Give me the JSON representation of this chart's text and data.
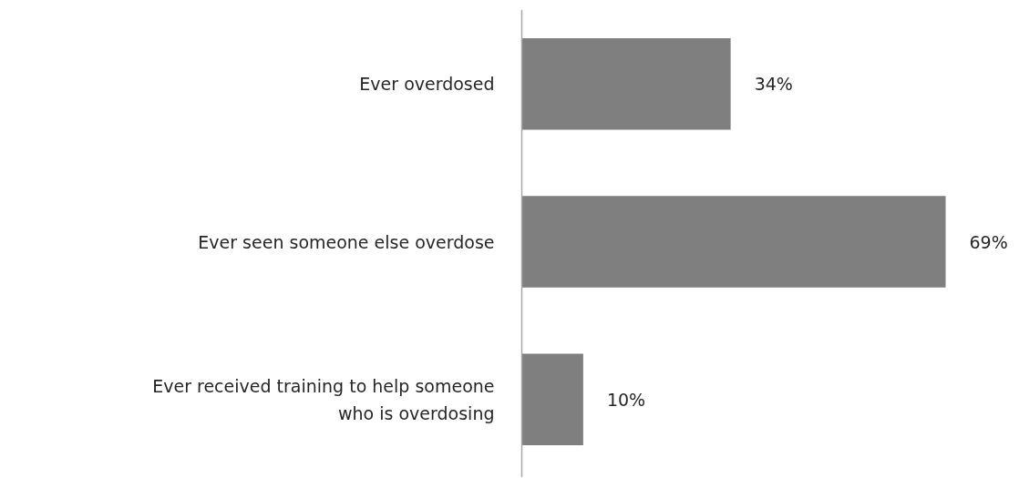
{
  "chart_data": {
    "type": "bar",
    "orientation": "horizontal",
    "categories": [
      "Ever overdosed",
      "Ever seen someone else overdose",
      "Ever received training to help someone who is overdosing"
    ],
    "values": [
      34,
      69,
      10
    ],
    "color": "#7f7f7f",
    "data_labels": true,
    "value_labels": [
      "34%",
      "69%",
      "10%"
    ],
    "grid": false
  }
}
